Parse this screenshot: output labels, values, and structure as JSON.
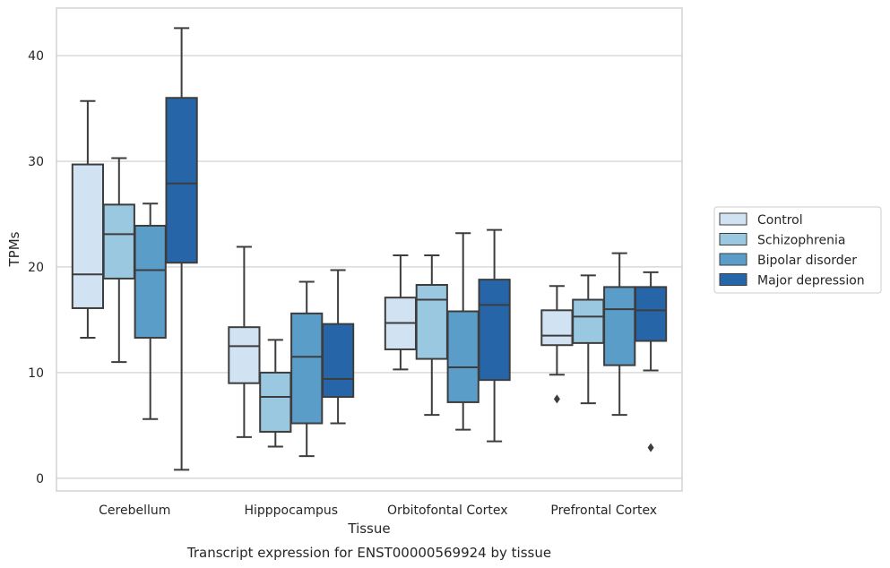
{
  "chart_data": {
    "type": "box",
    "title": "",
    "caption": "Transcript expression for ENST00000569924 by tissue",
    "xlabel": "Tissue",
    "ylabel": "TPMs",
    "ylim": [
      -1.2,
      44.5
    ],
    "yticks": [
      0,
      10,
      20,
      30,
      40
    ],
    "grid": "horizontal",
    "legend_position": "right",
    "categories": [
      "Cerebellum",
      "Hipppocampus",
      "Orbitofontal Cortex",
      "Prefrontal Cortex"
    ],
    "series": [
      {
        "name": "Control",
        "color": "#d1e2f2",
        "boxes": [
          {
            "whislo": 13.3,
            "q1": 16.1,
            "med": 19.3,
            "q3": 29.7,
            "whishi": 35.7,
            "fliers": []
          },
          {
            "whislo": 3.9,
            "q1": 9.0,
            "med": 12.5,
            "q3": 14.3,
            "whishi": 21.9,
            "fliers": []
          },
          {
            "whislo": 10.3,
            "q1": 12.2,
            "med": 14.7,
            "q3": 17.1,
            "whishi": 21.1,
            "fliers": []
          },
          {
            "whislo": 9.8,
            "q1": 12.6,
            "med": 13.5,
            "q3": 15.9,
            "whishi": 18.2,
            "fliers": [
              7.5
            ]
          }
        ]
      },
      {
        "name": "Schizophrenia",
        "color": "#9ac8e0",
        "boxes": [
          {
            "whislo": 11.0,
            "q1": 18.9,
            "med": 23.1,
            "q3": 25.9,
            "whishi": 30.3,
            "fliers": []
          },
          {
            "whislo": 3.0,
            "q1": 4.4,
            "med": 7.7,
            "q3": 10.0,
            "whishi": 13.1,
            "fliers": []
          },
          {
            "whislo": 6.0,
            "q1": 11.3,
            "med": 16.9,
            "q3": 18.3,
            "whishi": 21.1,
            "fliers": []
          },
          {
            "whislo": 7.1,
            "q1": 12.8,
            "med": 15.3,
            "q3": 16.9,
            "whishi": 19.2,
            "fliers": []
          }
        ]
      },
      {
        "name": "Bipolar disorder",
        "color": "#5a9dc9",
        "boxes": [
          {
            "whislo": 5.6,
            "q1": 13.3,
            "med": 19.7,
            "q3": 23.9,
            "whishi": 26.0,
            "fliers": []
          },
          {
            "whislo": 2.1,
            "q1": 5.2,
            "med": 11.5,
            "q3": 15.6,
            "whishi": 18.6,
            "fliers": []
          },
          {
            "whislo": 4.6,
            "q1": 7.2,
            "med": 10.5,
            "q3": 15.8,
            "whishi": 23.2,
            "fliers": []
          },
          {
            "whislo": 6.0,
            "q1": 10.7,
            "med": 16.0,
            "q3": 18.1,
            "whishi": 21.3,
            "fliers": []
          }
        ]
      },
      {
        "name": "Major depression",
        "color": "#2666a8",
        "boxes": [
          {
            "whislo": 0.8,
            "q1": 20.4,
            "med": 27.9,
            "q3": 36.0,
            "whishi": 42.6,
            "fliers": []
          },
          {
            "whislo": 5.2,
            "q1": 7.7,
            "med": 9.4,
            "q3": 14.6,
            "whishi": 19.7,
            "fliers": []
          },
          {
            "whislo": 3.5,
            "q1": 9.3,
            "med": 16.4,
            "q3": 18.8,
            "whishi": 23.5,
            "fliers": []
          },
          {
            "whislo": 10.2,
            "q1": 13.0,
            "med": 15.9,
            "q3": 18.1,
            "whishi": 19.5,
            "fliers": [
              2.9
            ]
          }
        ]
      }
    ]
  }
}
